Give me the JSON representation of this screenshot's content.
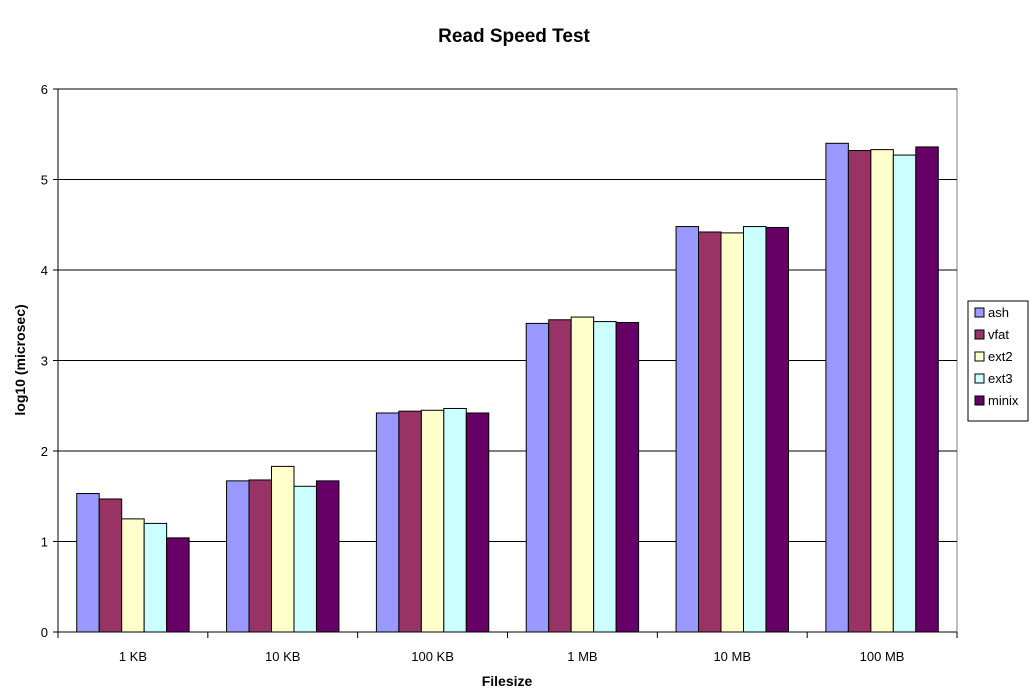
{
  "chart_data": {
    "type": "bar",
    "title": "Read Speed Test",
    "xlabel": "Filesize",
    "ylabel": "log10 (microsec)",
    "ylim": [
      0,
      6
    ],
    "yticks": [
      0,
      1,
      2,
      3,
      4,
      5,
      6
    ],
    "grid": true,
    "legend_position": "right",
    "categories": [
      "1 KB",
      "10 KB",
      "100 KB",
      "1 MB",
      "10 MB",
      "100 MB"
    ],
    "series": [
      {
        "name": "ash",
        "color": "#9999ff",
        "values": [
          1.53,
          1.67,
          2.42,
          3.41,
          4.48,
          5.4
        ]
      },
      {
        "name": "vfat",
        "color": "#993366",
        "values": [
          1.47,
          1.68,
          2.44,
          3.45,
          4.42,
          5.32
        ]
      },
      {
        "name": "ext2",
        "color": "#ffffcc",
        "values": [
          1.25,
          1.83,
          2.45,
          3.48,
          4.41,
          5.33
        ]
      },
      {
        "name": "ext3",
        "color": "#ccffff",
        "values": [
          1.2,
          1.61,
          2.47,
          3.43,
          4.48,
          5.27
        ]
      },
      {
        "name": "minix",
        "color": "#660066",
        "values": [
          1.04,
          1.67,
          2.42,
          3.42,
          4.47,
          5.36
        ]
      }
    ],
    "plot_background": "#ffffff",
    "gridline_color": "#000000",
    "frame_color": "#808080"
  }
}
